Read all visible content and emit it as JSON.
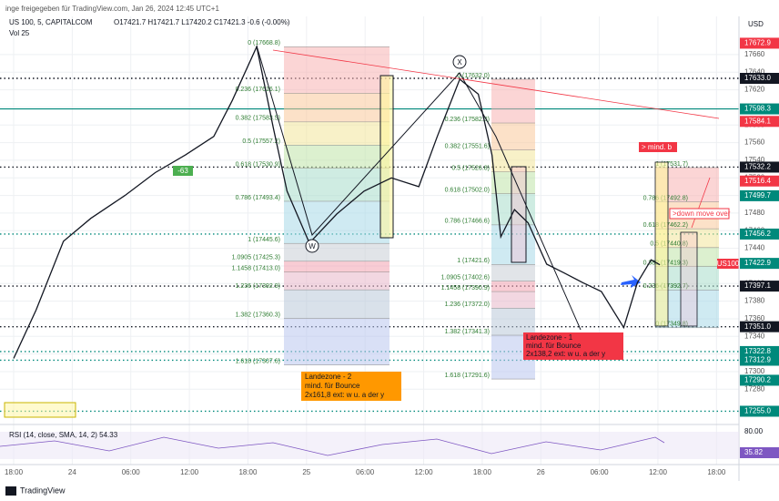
{
  "header": {
    "author_line": "inge freigegeben für TradingView.com, Jan 26, 2024 12:45 UTC+1",
    "symbol": "US 100, 5, CAPITALCOM",
    "ohlc": "O17421.7 H17421.7 L17420.2 C17421.3 -0.6 (-0.00%)",
    "volume": "Vol 25",
    "currency": "USD",
    "footer": "TradingView"
  },
  "chart_data": {
    "type": "line",
    "color": "#131722",
    "x": [
      0,
      2.3,
      5.1,
      7.9,
      11.4,
      14.5,
      17.6,
      20.5,
      22.4,
      24.9,
      26.6,
      28.0,
      30.3,
      33.1,
      35.9,
      38.7,
      41.5,
      43.4,
      45.7,
      47.6,
      49.0,
      49.9,
      51.3,
      52.7,
      54.6,
      56.4,
      58.3,
      60.2,
      62.5,
      63.9,
      65.3,
      66.2
    ],
    "values": [
      17315,
      17370,
      17448,
      17474,
      17500,
      17526,
      17546,
      17567,
      17608,
      17669,
      17577,
      17505,
      17446,
      17479,
      17505,
      17520,
      17510,
      17567,
      17632,
      17615,
      17546,
      17453,
      17484,
      17469,
      17422,
      17412,
      17401,
      17391,
      17350,
      17401,
      17427,
      17421.3
    ],
    "xlim": [
      -1.4,
      74.3
    ],
    "xticks": [
      {
        "value": 0,
        "label": "18:00"
      },
      {
        "value": 6,
        "label": "24"
      },
      {
        "value": 12,
        "label": "06:00"
      },
      {
        "value": 18,
        "label": "12:00"
      },
      {
        "value": 24,
        "label": "18:00"
      },
      {
        "value": 30,
        "label": "25"
      },
      {
        "value": 36,
        "label": "06:00"
      },
      {
        "value": 42,
        "label": "12:00"
      },
      {
        "value": 48,
        "label": "18:00"
      },
      {
        "value": 54,
        "label": "26"
      },
      {
        "value": 60,
        "label": "06:00"
      },
      {
        "value": 66,
        "label": "12:00"
      },
      {
        "value": 72,
        "label": "18:00"
      }
    ],
    "ylim": [
      17241,
      17693
    ],
    "yticks": [
      17660,
      17640,
      17620,
      17600,
      17580,
      17560,
      17540,
      17520,
      17500,
      17480,
      17460,
      17440,
      17420,
      17400,
      17380,
      17360,
      17340,
      17320,
      17300,
      17280
    ],
    "grid": true,
    "price_labels": [
      {
        "value": 17672.9,
        "label": "17672.9",
        "color": "#f23645",
        "style": "none"
      },
      {
        "value": 17633.0,
        "label": "17633.0",
        "color": "#131722",
        "style": "dotted"
      },
      {
        "value": 17598.3,
        "label": "17598.3",
        "color": "#00897b",
        "style": "solid"
      },
      {
        "value": 17584.1,
        "label": "17584.1",
        "color": "#f23645",
        "style": "none"
      },
      {
        "value": 17532.2,
        "label": "17532.2",
        "color": "#131722",
        "style": "dotted"
      },
      {
        "value": 17516.4,
        "label": "17516.4",
        "color": "#f23645",
        "style": "none"
      },
      {
        "value": 17499.7,
        "label": "17499.7",
        "color": "#00897b",
        "style": "none"
      },
      {
        "value": 17456.2,
        "label": "17456.2",
        "color": "#00897b",
        "style": "dotted"
      },
      {
        "value": 17422.9,
        "label": "17422.9",
        "color": "#00897b",
        "style": "none"
      },
      {
        "value": 17397.1,
        "label": "17397.1",
        "color": "#131722",
        "style": "dotted"
      },
      {
        "value": 17351.0,
        "label": "17351.0",
        "color": "#131722",
        "style": "dotted"
      },
      {
        "value": 17322.8,
        "label": "17322.8",
        "color": "#00897b",
        "style": "dotted"
      },
      {
        "value": 17312.9,
        "label": "17312.9",
        "color": "#00897b",
        "style": "dotted"
      },
      {
        "value": 17290.2,
        "label": "17290.2",
        "color": "#00897b",
        "style": "none"
      },
      {
        "value": 17255.0,
        "label": "17255.0",
        "color": "#00897b",
        "style": "dotted"
      }
    ],
    "fib_sets": [
      {
        "levels": [
          {
            "value": 17668.8,
            "label": "0 (17668.8)"
          },
          {
            "value": 17616.1,
            "label": "0.236 (17616.1)"
          },
          {
            "value": 17583.5,
            "label": "0.382 (17583.5)"
          },
          {
            "value": 17557.2,
            "label": "0.5 (17557.2)"
          },
          {
            "value": 17530.9,
            "label": "0.618 (17530.9)"
          },
          {
            "value": 17493.4,
            "label": "0.786 (17493.4)"
          },
          {
            "value": 17445.6,
            "label": "1 (17445.6)"
          },
          {
            "value": 17425.3,
            "label": "1.0905 (17425.3)"
          },
          {
            "value": 17413.0,
            "label": "1.1458 (17413.0)"
          },
          {
            "value": 17392.9,
            "label": "1.236 (17392.9)"
          },
          {
            "value": 17360.3,
            "label": "1.382 (17360.3)"
          },
          {
            "value": 17307.6,
            "label": "1.618 (17307.6)"
          }
        ]
      },
      {
        "levels": [
          {
            "value": 17632.0,
            "label": "0 (17632.0)"
          },
          {
            "value": 17582.3,
            "label": "0.236 (17582.3)"
          },
          {
            "value": 17551.6,
            "label": "0.382 (17551.6)"
          },
          {
            "value": 17526.8,
            "label": "0.5 (17526.8)"
          },
          {
            "value": 17502.0,
            "label": "0.618 (17502.0)"
          },
          {
            "value": 17466.6,
            "label": "0.786 (17466.6)"
          },
          {
            "value": 17421.6,
            "label": "1 (17421.6)"
          },
          {
            "value": 17402.6,
            "label": "1.0905 (17402.6)"
          },
          {
            "value": 17390.9,
            "label": "1.1458 (17390.9)"
          },
          {
            "value": 17372.0,
            "label": "1.236 (17372.0)"
          },
          {
            "value": 17341.3,
            "label": "1.382 (17341.3)"
          },
          {
            "value": 17291.6,
            "label": "1.618 (17291.6)"
          }
        ]
      },
      {
        "levels": [
          {
            "value": 17531.7,
            "label": "1 (17531.7)"
          },
          {
            "value": 17492.8,
            "label": "0.786 (17492.8)"
          },
          {
            "value": 17462.2,
            "label": "0.618 (17462.2)"
          },
          {
            "value": 17440.8,
            "label": "0.5 (17440.8)"
          },
          {
            "value": 17419.3,
            "label": "0.382 (17419.3)"
          },
          {
            "value": 17392.7,
            "label": "0.236 (17392.7)"
          },
          {
            "value": 17349.8,
            "label": "0 (17349.8)"
          }
        ]
      }
    ],
    "annotations": {
      "zone2": [
        "Landezone - 2",
        "mind. für Bounce",
        "2x161,8 ext: w u. a der y"
      ],
      "zone1": [
        "Landezone - 1",
        "mind. für Bounce",
        "2x138,2 ext: w u. a der y"
      ],
      "min_b": "> mind. b",
      "down_over": ">down move over",
      "wave_w": "W",
      "wave_x": "X",
      "tag": "-63",
      "symbol_tag": "US100"
    },
    "rsi": {
      "label": "RSI (14, close, SMA, 14, 2) 54.33",
      "upper": "80.00",
      "current": "35.82"
    }
  }
}
